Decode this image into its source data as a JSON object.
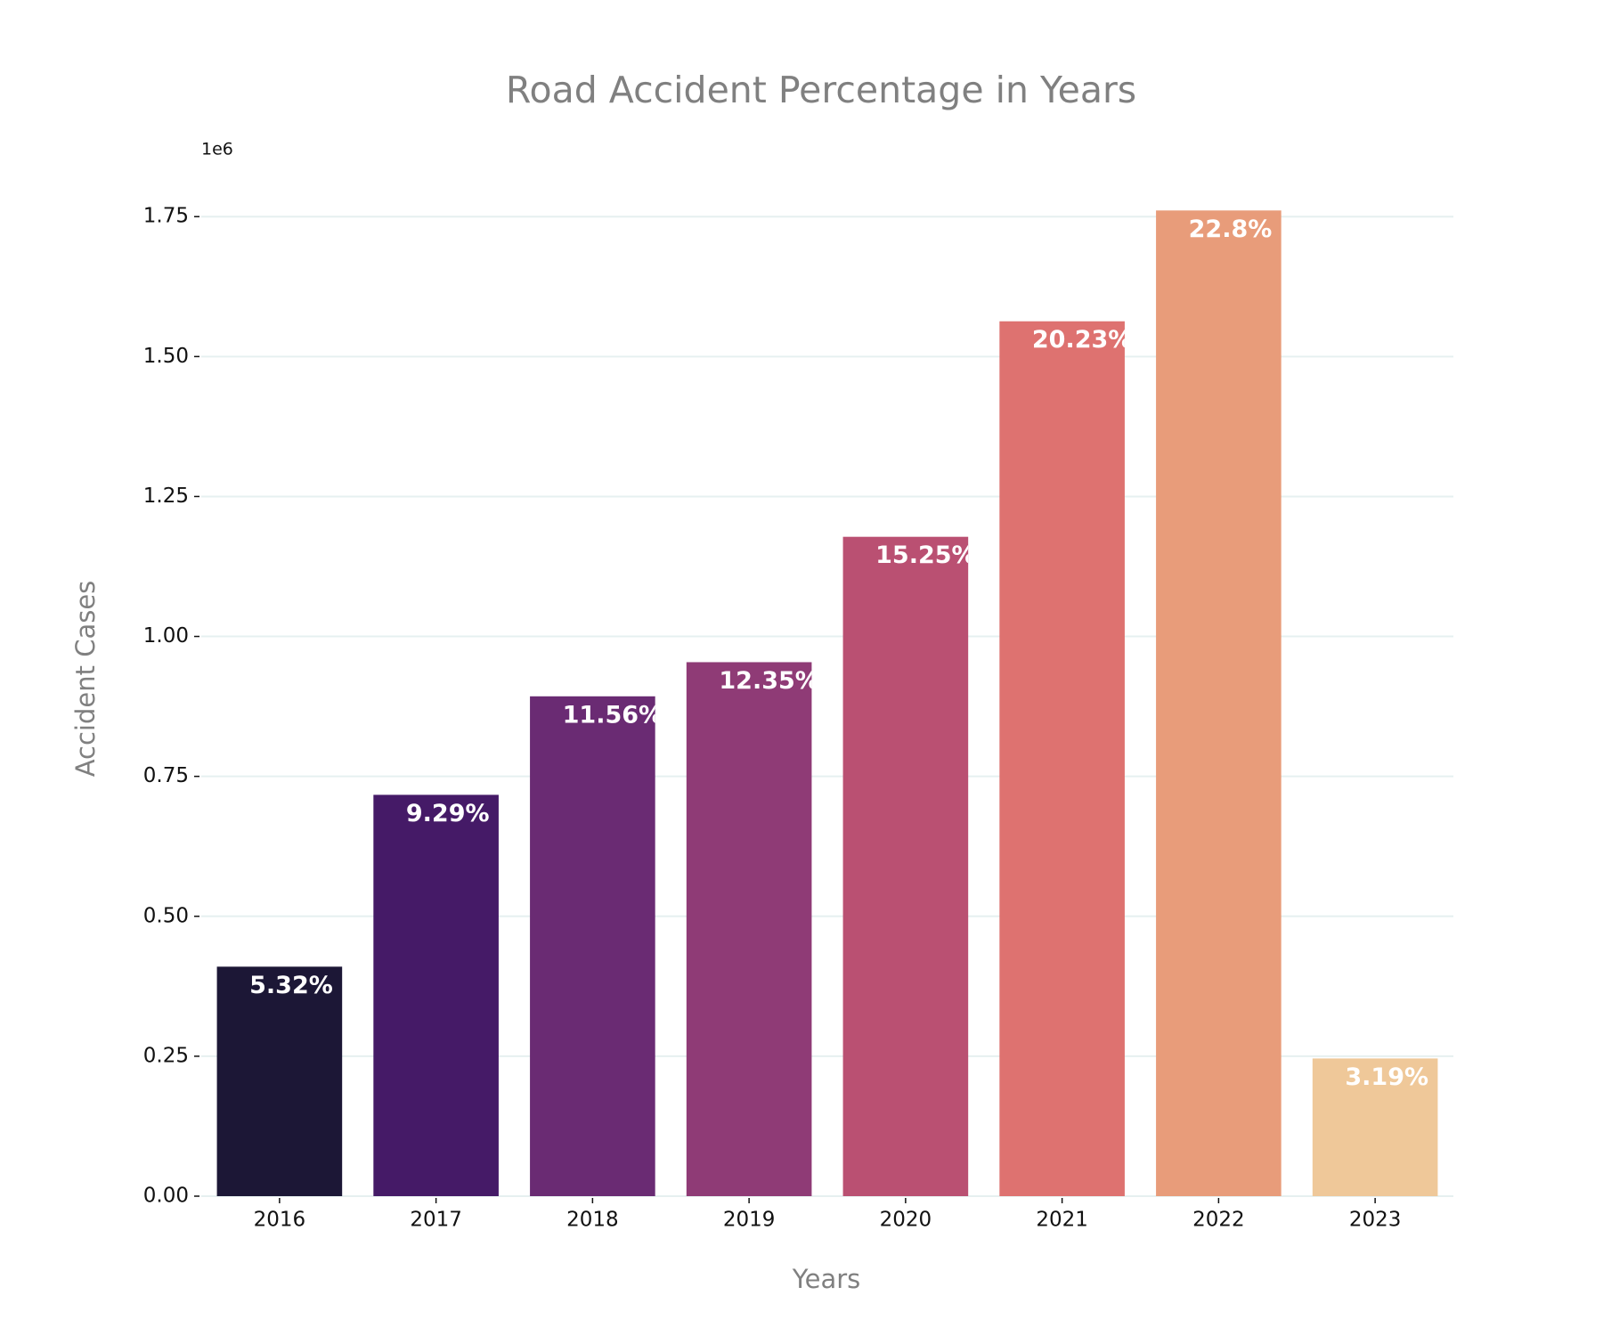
{
  "chart_data": {
    "type": "bar",
    "title": "Road Accident Percentage in Years",
    "x_label": "Years",
    "y_label": "Accident Cases",
    "y_offset_label": "1e6",
    "categories": [
      "2016",
      "2017",
      "2018",
      "2019",
      "2020",
      "2021",
      "2022",
      "2023"
    ],
    "values": [
      410000,
      717000,
      893000,
      954000,
      1178000,
      1563000,
      1761000,
      246000
    ],
    "annotations": [
      "5.32%",
      "9.29%",
      "11.56%",
      "12.35%",
      "15.25%",
      "20.23%",
      "22.8%",
      "3.19%"
    ],
    "colors": [
      "#1c1736",
      "#451a67",
      "#6a2b73",
      "#8f3b76",
      "#ba5072",
      "#de7270",
      "#e89c7a",
      "#efc899"
    ],
    "ylim": [
      0,
      1849000
    ],
    "yticks": [
      {
        "value": 0,
        "label": "0.00"
      },
      {
        "value": 250000,
        "label": "0.25"
      },
      {
        "value": 500000,
        "label": "0.50"
      },
      {
        "value": 750000,
        "label": "0.75"
      },
      {
        "value": 1000000,
        "label": "1.00"
      },
      {
        "value": 1250000,
        "label": "1.25"
      },
      {
        "value": 1500000,
        "label": "1.50"
      },
      {
        "value": 1750000,
        "label": "1.75"
      }
    ],
    "grid": true
  }
}
